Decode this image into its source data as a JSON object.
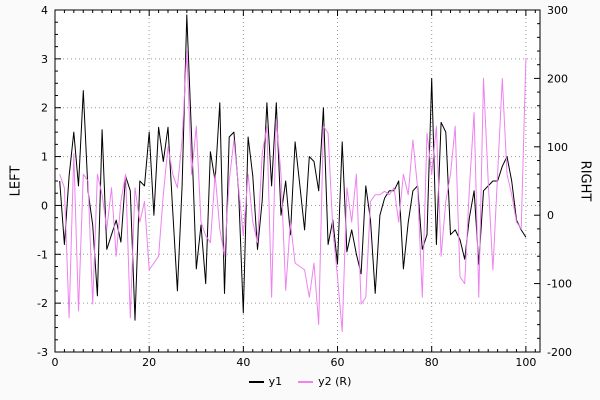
{
  "chart_data": {
    "type": "line",
    "title": "",
    "xlabel": "",
    "ylabel_left": "LEFT",
    "ylabel_right": "RIGHT",
    "grid": true,
    "legend_position": "bottom-center",
    "axes": {
      "x": {
        "min": 0,
        "max": 103,
        "majors": [
          0,
          20,
          40,
          60,
          80,
          100
        ],
        "minor_step": 2
      },
      "left": {
        "min": -3,
        "max": 4,
        "majors": [
          -3,
          -2,
          -1,
          0,
          1,
          2,
          3,
          4
        ],
        "minor_step": 0.25,
        "label": "LEFT"
      },
      "right": {
        "min": -200,
        "max": 300,
        "majors": [
          -200,
          -100,
          0,
          100,
          200,
          300
        ],
        "minor_step": 20,
        "label": "RIGHT"
      }
    },
    "x": [
      1,
      2,
      3,
      4,
      5,
      6,
      7,
      8,
      9,
      10,
      11,
      12,
      13,
      14,
      15,
      16,
      17,
      18,
      19,
      20,
      21,
      22,
      23,
      24,
      25,
      26,
      27,
      28,
      29,
      30,
      31,
      32,
      33,
      34,
      35,
      36,
      37,
      38,
      39,
      40,
      41,
      42,
      43,
      44,
      45,
      46,
      47,
      48,
      49,
      50,
      51,
      52,
      53,
      54,
      55,
      56,
      57,
      58,
      59,
      60,
      61,
      62,
      63,
      64,
      65,
      66,
      67,
      68,
      69,
      70,
      71,
      72,
      73,
      74,
      75,
      76,
      77,
      78,
      79,
      80,
      81,
      82,
      83,
      84,
      85,
      86,
      87,
      88,
      89,
      90,
      91,
      92,
      93,
      94,
      95,
      96,
      97,
      98,
      99,
      100
    ],
    "series": [
      {
        "name": "y1",
        "axis": "left",
        "color": "#000000",
        "values": [
          0.5,
          -0.8,
          0.6,
          1.5,
          0.4,
          2.35,
          0.3,
          -0.4,
          -1.85,
          1.55,
          -0.9,
          -0.6,
          -0.3,
          -0.75,
          0.6,
          0.3,
          -2.35,
          0.5,
          0.4,
          1.5,
          -0.2,
          1.6,
          0.9,
          1.6,
          -0.1,
          -1.75,
          0.4,
          3.9,
          1.4,
          -1.3,
          -0.4,
          -1.6,
          1.1,
          0.5,
          2.1,
          -1.8,
          1.4,
          1.5,
          0.3,
          -2.2,
          1.4,
          0.6,
          -0.9,
          0.1,
          2.1,
          0.4,
          2.1,
          -0.2,
          0.5,
          -0.6,
          1.3,
          0.4,
          -0.5,
          1.0,
          0.9,
          0.3,
          2.0,
          -0.8,
          -0.3,
          -1.2,
          1.3,
          -0.95,
          -0.5,
          -1.0,
          -1.4,
          0.4,
          -0.3,
          -1.8,
          -0.2,
          0.15,
          0.3,
          0.3,
          0.5,
          -1.3,
          -0.35,
          0.3,
          0.4,
          -0.9,
          -0.6,
          2.6,
          -0.8,
          1.7,
          1.5,
          -0.6,
          -0.5,
          -0.7,
          -1.1,
          -0.25,
          0.3,
          -1.2,
          0.3,
          0.4,
          0.5,
          0.5,
          0.8,
          1.0,
          0.5,
          -0.3,
          -0.5,
          -0.65
        ]
      },
      {
        "name": "y2 (R)",
        "axis": "right",
        "color": "#ee82ee",
        "values": [
          60,
          40,
          -150,
          90,
          -140,
          60,
          50,
          -130,
          60,
          30,
          -20,
          40,
          -60,
          20,
          60,
          -150,
          40,
          -10,
          20,
          -80,
          -70,
          -60,
          30,
          100,
          60,
          40,
          110,
          240,
          60,
          130,
          -10,
          -30,
          -40,
          60,
          -20,
          -60,
          50,
          110,
          40,
          -30,
          60,
          -10,
          -40,
          90,
          130,
          -120,
          140,
          60,
          -110,
          -10,
          -70,
          -75,
          -80,
          -120,
          -70,
          -160,
          130,
          120,
          -20,
          -90,
          -170,
          40,
          -10,
          60,
          -130,
          -120,
          20,
          30,
          30,
          35,
          30,
          40,
          -10,
          60,
          30,
          110,
          40,
          -120,
          120,
          60,
          130,
          -60,
          20,
          60,
          130,
          -90,
          -100,
          40,
          150,
          -120,
          200,
          50,
          -80,
          60,
          200,
          60,
          30,
          -10,
          -20,
          230
        ]
      }
    ],
    "colors": {
      "grid": "#999999",
      "axis": "#000000",
      "plot_background": "#ffffff",
      "page_background": "#fafafa"
    }
  }
}
